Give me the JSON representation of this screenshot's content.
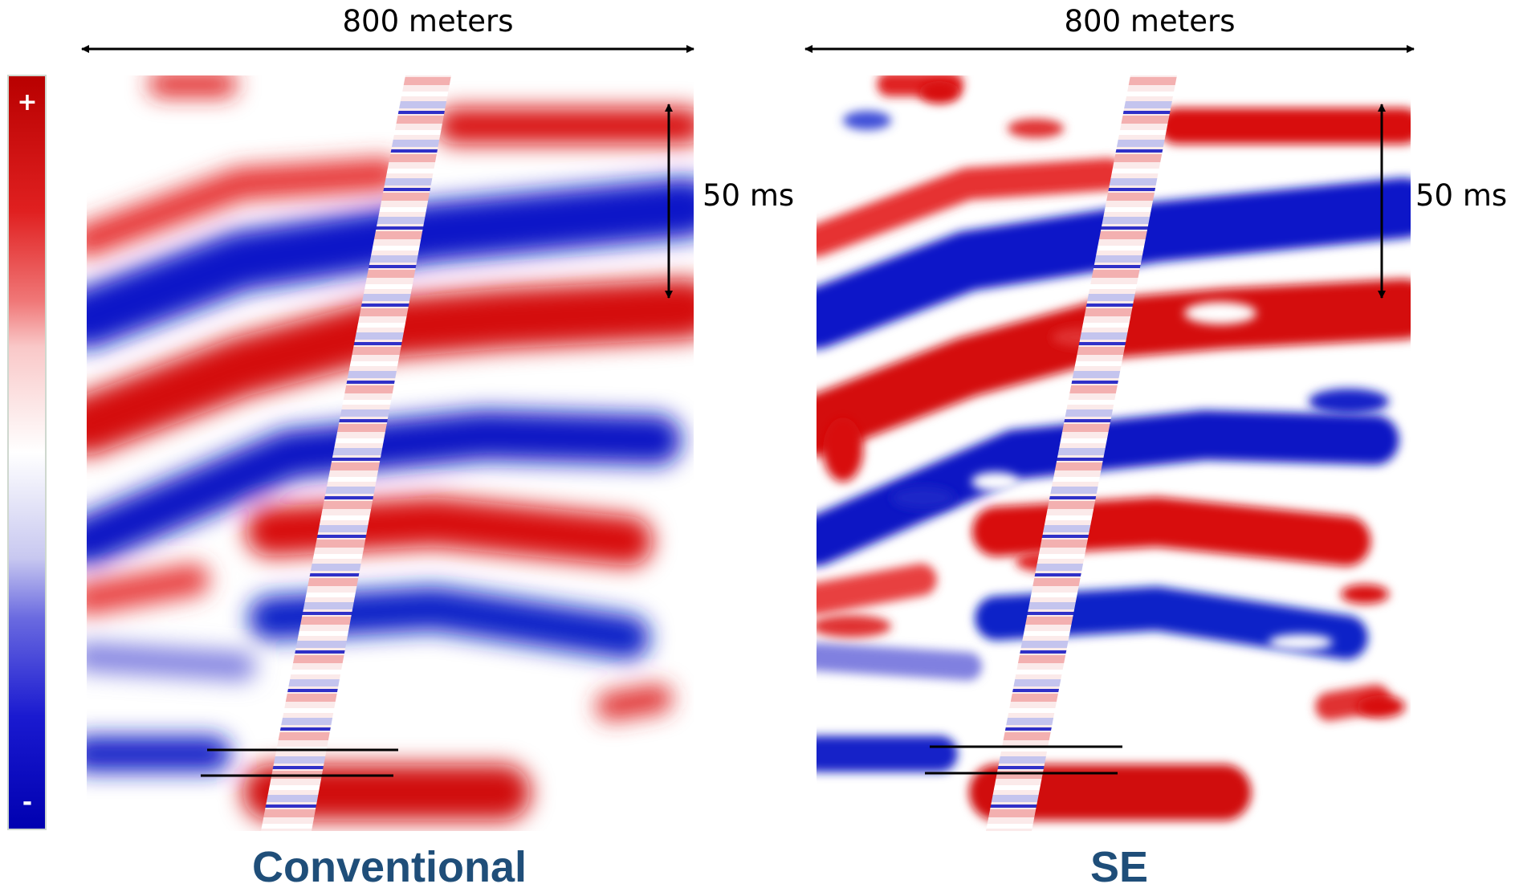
{
  "scale_bars": {
    "distance_left": "800 meters",
    "distance_right": "800 meters",
    "time_left": "50 ms",
    "time_right": "50 ms"
  },
  "colorbar": {
    "max_label": "+",
    "min_label": "-"
  },
  "panels": [
    {
      "label": "Conventional"
    },
    {
      "label": "SE"
    }
  ]
}
